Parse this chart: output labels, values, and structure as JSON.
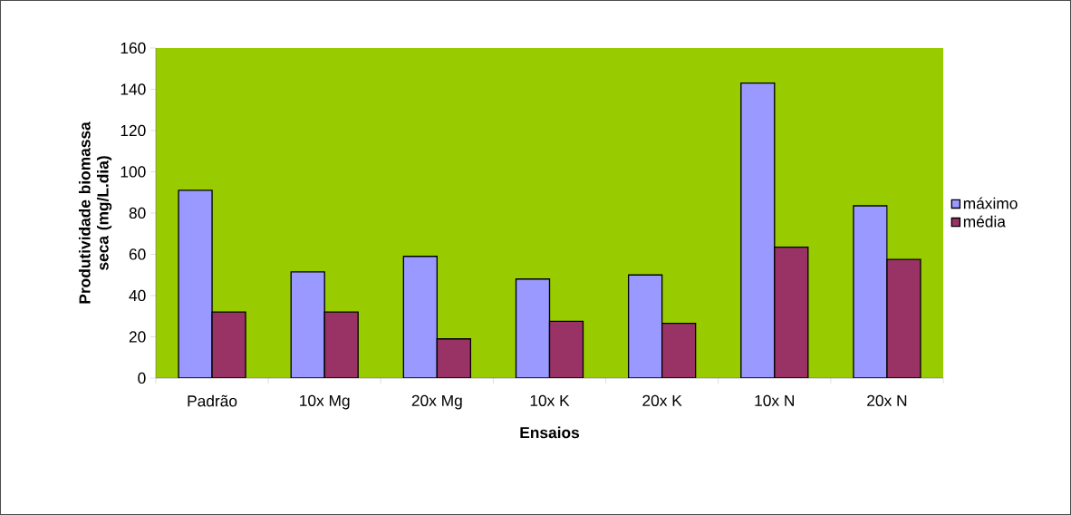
{
  "chart_data": {
    "type": "bar",
    "xlabel": "Ensaios",
    "ylabel": "Produtividade biomassa seca (mg/L.dia)",
    "categories": [
      "Padrão",
      "10x Mg",
      "20x Mg",
      "10x K",
      "20x K",
      "10x N",
      "20x N"
    ],
    "series": [
      {
        "name": "máximo",
        "color": "#9999ff",
        "values": [
          91,
          51.5,
          59,
          48,
          50,
          143,
          83.5
        ]
      },
      {
        "name": "média",
        "color": "#993366",
        "values": [
          32,
          32,
          19,
          27.5,
          26.5,
          63.5,
          57.5
        ]
      }
    ],
    "ylim": [
      0,
      160
    ],
    "yticks": [
      0,
      20,
      40,
      60,
      80,
      100,
      120,
      140,
      160
    ],
    "grid": false,
    "legend": "right"
  }
}
